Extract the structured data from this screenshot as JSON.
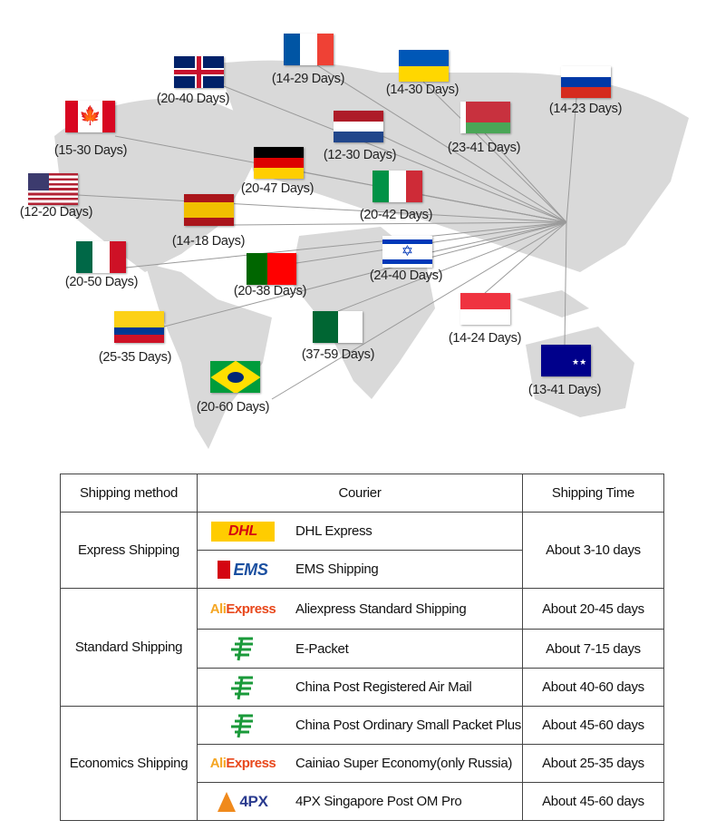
{
  "map": {
    "destinations": [
      {
        "flag": "uk-flag",
        "label": "(20-40 Days)"
      },
      {
        "flag": "france-flag",
        "label": "(14-29 Days)"
      },
      {
        "flag": "ukraine-flag",
        "label": "(14-30 Days)"
      },
      {
        "flag": "russia-flag",
        "label": "(14-23 Days)"
      },
      {
        "flag": "canada-flag",
        "label": "(15-30 Days)"
      },
      {
        "flag": "netherlands-flag",
        "label": "(12-30 Days)"
      },
      {
        "flag": "belarus-flag",
        "label": "(23-41 Days)"
      },
      {
        "flag": "germany-flag",
        "label": "(20-47 Days)"
      },
      {
        "flag": "usa-flag",
        "label": "(12-20 Days)"
      },
      {
        "flag": "italy-flag",
        "label": "(20-42 Days)"
      },
      {
        "flag": "spain-flag",
        "label": "(14-18 Days)"
      },
      {
        "flag": "mexico-flag",
        "label": "(20-50 Days)"
      },
      {
        "flag": "portugal-flag",
        "label": "(20-38 Days)"
      },
      {
        "flag": "israel-flag",
        "label": "(24-40 Days)"
      },
      {
        "flag": "singapore-flag",
        "label": "(14-24 Days)"
      },
      {
        "flag": "colombia-flag",
        "label": "(25-35 Days)"
      },
      {
        "flag": "algeria-flag",
        "label": "(37-59 Days)"
      },
      {
        "flag": "australia-flag",
        "label": "(13-41 Days)"
      },
      {
        "flag": "brazil-flag",
        "label": "(20-60 Days)"
      }
    ]
  },
  "table": {
    "headers": [
      "Shipping method",
      "Courier",
      "Shipping Time"
    ],
    "groups": [
      "Express Shipping",
      "Standard Shipping",
      "Economics Shipping"
    ],
    "rows": [
      {
        "logo": "dhl-logo",
        "logo_text": "DHL",
        "courier": "DHL Express",
        "time": "About 3-10 days"
      },
      {
        "logo": "ems-logo",
        "logo_text": "EMS",
        "courier": "EMS Shipping"
      },
      {
        "logo": "aliexpress-logo",
        "logo_text": "AliExpress",
        "courier": "Aliexpress Standard Shipping",
        "time": "About 20-45 days"
      },
      {
        "logo": "china-post-logo",
        "courier": "E-Packet",
        "time": "About 7-15 days"
      },
      {
        "logo": "china-post-logo",
        "courier": "China Post Registered Air Mail",
        "time": "About 40-60 days"
      },
      {
        "logo": "china-post-logo",
        "courier": "China Post Ordinary Small Packet Plus",
        "time": "About 45-60 days"
      },
      {
        "logo": "aliexpress-logo",
        "logo_text": "AliExpress",
        "courier": "Cainiao Super Economy(only Russia)",
        "time": "About 25-35 days"
      },
      {
        "logo": "4px-logo",
        "logo_text": "4PX",
        "courier": "4PX Singapore Post OM Pro",
        "time": "About 45-60 days"
      }
    ]
  },
  "colors": {
    "map": "#d9d9d9",
    "lines": "#9a9a9a",
    "dhl_yellow": "#ffcc00",
    "dhl_red": "#d40511",
    "ems_blue": "#1a4fa0",
    "china_post_green": "#1a9a3a",
    "ali_red": "#e8481c"
  }
}
